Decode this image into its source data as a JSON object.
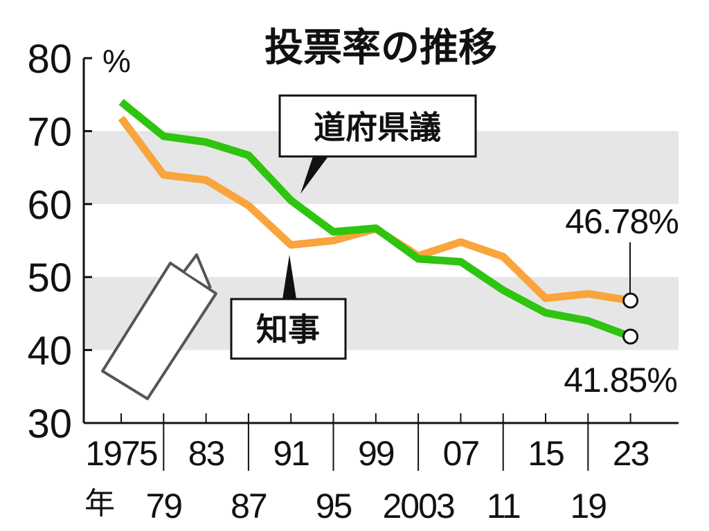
{
  "chart_data": {
    "type": "line",
    "title": "投票率の推移",
    "y_unit": "%",
    "x_suffix": "年",
    "ylim": [
      30,
      80
    ],
    "yticks": [
      "30",
      "40",
      "50",
      "60",
      "70",
      "80"
    ],
    "x": [
      1975,
      1979,
      1983,
      1987,
      1991,
      1995,
      1999,
      2003,
      2007,
      2011,
      2015,
      2019,
      2023
    ],
    "x_tick_labels": [
      "1975",
      "79",
      "83",
      "87",
      "91",
      "95",
      "99",
      "2003",
      "07",
      "11",
      "15",
      "19",
      "23"
    ],
    "shaded_bands": [
      [
        40,
        50
      ],
      [
        60,
        70
      ]
    ],
    "series": [
      {
        "name": "道府県議",
        "color": "#2ec410",
        "values": [
          74.0,
          69.3,
          68.5,
          66.7,
          60.5,
          56.2,
          56.7,
          52.5,
          52.1,
          48.2,
          45.1,
          44.0,
          41.85
        ]
      },
      {
        "name": "知事",
        "color": "#f9a43c",
        "values": [
          71.8,
          64.0,
          63.3,
          59.8,
          54.4,
          55.0,
          56.6,
          52.9,
          54.8,
          52.8,
          47.1,
          47.7,
          46.78
        ]
      }
    ],
    "end_labels": [
      "46.78%",
      "41.85%"
    ]
  }
}
